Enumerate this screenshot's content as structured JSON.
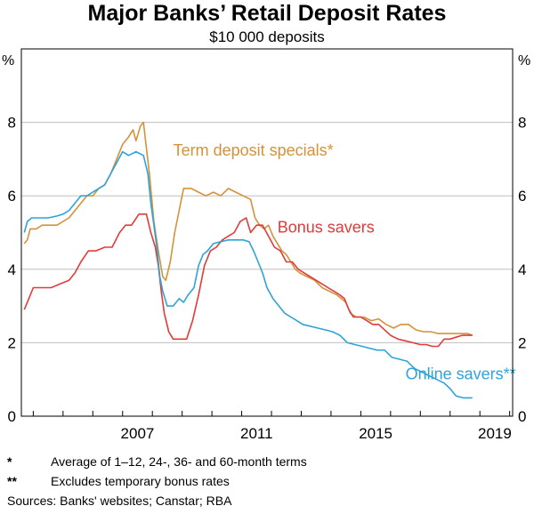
{
  "chart_data": {
    "type": "line",
    "title": "Major Banks’ Retail Deposit Rates",
    "subtitle": "$10 000 deposits",
    "ylabel_left": "%",
    "ylabel_right": "%",
    "xlim": [
      2003.6,
      2020.1
    ],
    "ylim": [
      0,
      10
    ],
    "y_ticks": [
      0,
      2,
      4,
      6,
      8
    ],
    "x_ticks": [
      2007,
      2011,
      2015,
      2019
    ],
    "x_minor_ticks": [
      2004,
      2005,
      2006,
      2007,
      2008,
      2009,
      2010,
      2011,
      2012,
      2013,
      2014,
      2015,
      2016,
      2017,
      2018,
      2019,
      2020
    ],
    "grid": "horizontal",
    "series": [
      {
        "name": "Term deposit specials*",
        "color": "#d4923a",
        "label_x": 2008.7,
        "label_y": 7.1,
        "points": [
          [
            2003.7,
            4.7
          ],
          [
            2003.8,
            4.8
          ],
          [
            2003.9,
            5.1
          ],
          [
            2004.1,
            5.1
          ],
          [
            2004.3,
            5.2
          ],
          [
            2004.6,
            5.2
          ],
          [
            2004.8,
            5.2
          ],
          [
            2005.0,
            5.3
          ],
          [
            2005.2,
            5.4
          ],
          [
            2005.4,
            5.6
          ],
          [
            2005.6,
            5.8
          ],
          [
            2005.8,
            6.0
          ],
          [
            2006.0,
            6.0
          ],
          [
            2006.2,
            6.2
          ],
          [
            2006.4,
            6.3
          ],
          [
            2006.6,
            6.6
          ],
          [
            2006.8,
            7.0
          ],
          [
            2007.0,
            7.4
          ],
          [
            2007.2,
            7.6
          ],
          [
            2007.35,
            7.8
          ],
          [
            2007.45,
            7.5
          ],
          [
            2007.6,
            7.9
          ],
          [
            2007.7,
            8.0
          ],
          [
            2007.8,
            7.3
          ],
          [
            2007.9,
            6.6
          ],
          [
            2008.05,
            5.3
          ],
          [
            2008.2,
            4.5
          ],
          [
            2008.35,
            3.8
          ],
          [
            2008.45,
            3.7
          ],
          [
            2008.6,
            4.2
          ],
          [
            2008.75,
            5.0
          ],
          [
            2008.9,
            5.6
          ],
          [
            2009.05,
            6.2
          ],
          [
            2009.3,
            6.2
          ],
          [
            2009.55,
            6.1
          ],
          [
            2009.8,
            6.0
          ],
          [
            2010.05,
            6.1
          ],
          [
            2010.3,
            6.0
          ],
          [
            2010.55,
            6.2
          ],
          [
            2010.8,
            6.1
          ],
          [
            2011.05,
            6.0
          ],
          [
            2011.3,
            5.9
          ],
          [
            2011.45,
            5.4
          ],
          [
            2011.6,
            5.2
          ],
          [
            2011.75,
            5.1
          ],
          [
            2011.9,
            5.2
          ],
          [
            2012.05,
            4.9
          ],
          [
            2012.2,
            4.7
          ],
          [
            2012.35,
            4.5
          ],
          [
            2012.5,
            4.4
          ],
          [
            2012.65,
            4.2
          ],
          [
            2012.8,
            4.0
          ],
          [
            2012.95,
            3.9
          ],
          [
            2013.2,
            3.8
          ],
          [
            2013.45,
            3.7
          ],
          [
            2013.7,
            3.5
          ],
          [
            2013.95,
            3.4
          ],
          [
            2014.2,
            3.3
          ],
          [
            2014.35,
            3.2
          ],
          [
            2014.5,
            3.1
          ],
          [
            2014.65,
            2.8
          ],
          [
            2014.85,
            2.7
          ],
          [
            2015.1,
            2.7
          ],
          [
            2015.35,
            2.6
          ],
          [
            2015.6,
            2.65
          ],
          [
            2015.85,
            2.5
          ],
          [
            2016.1,
            2.4
          ],
          [
            2016.35,
            2.5
          ],
          [
            2016.6,
            2.5
          ],
          [
            2016.85,
            2.35
          ],
          [
            2017.1,
            2.3
          ],
          [
            2017.35,
            2.3
          ],
          [
            2017.6,
            2.25
          ],
          [
            2017.85,
            2.25
          ],
          [
            2018.1,
            2.25
          ],
          [
            2018.35,
            2.25
          ],
          [
            2018.6,
            2.25
          ],
          [
            2018.75,
            2.2
          ]
        ]
      },
      {
        "name": "Bonus savers",
        "color": "#e03b3b",
        "label_x": 2012.2,
        "label_y": 5.0,
        "points": [
          [
            2003.7,
            2.9
          ],
          [
            2003.85,
            3.2
          ],
          [
            2004.0,
            3.5
          ],
          [
            2004.3,
            3.5
          ],
          [
            2004.6,
            3.5
          ],
          [
            2004.9,
            3.6
          ],
          [
            2005.2,
            3.7
          ],
          [
            2005.4,
            3.9
          ],
          [
            2005.6,
            4.2
          ],
          [
            2005.85,
            4.5
          ],
          [
            2006.1,
            4.5
          ],
          [
            2006.4,
            4.6
          ],
          [
            2006.65,
            4.6
          ],
          [
            2006.9,
            5.0
          ],
          [
            2007.1,
            5.2
          ],
          [
            2007.3,
            5.2
          ],
          [
            2007.55,
            5.5
          ],
          [
            2007.8,
            5.5
          ],
          [
            2007.95,
            5.0
          ],
          [
            2008.1,
            4.6
          ],
          [
            2008.2,
            4.1
          ],
          [
            2008.3,
            3.4
          ],
          [
            2008.4,
            2.8
          ],
          [
            2008.55,
            2.3
          ],
          [
            2008.7,
            2.1
          ],
          [
            2008.9,
            2.1
          ],
          [
            2009.15,
            2.1
          ],
          [
            2009.35,
            2.6
          ],
          [
            2009.55,
            3.3
          ],
          [
            2009.75,
            4.1
          ],
          [
            2009.95,
            4.5
          ],
          [
            2010.15,
            4.6
          ],
          [
            2010.35,
            4.8
          ],
          [
            2010.55,
            4.9
          ],
          [
            2010.75,
            5.0
          ],
          [
            2010.95,
            5.3
          ],
          [
            2011.15,
            5.4
          ],
          [
            2011.3,
            5.0
          ],
          [
            2011.5,
            5.2
          ],
          [
            2011.7,
            5.2
          ],
          [
            2011.9,
            4.9
          ],
          [
            2012.1,
            4.6
          ],
          [
            2012.3,
            4.5
          ],
          [
            2012.5,
            4.2
          ],
          [
            2012.7,
            4.2
          ],
          [
            2012.9,
            4.0
          ],
          [
            2013.1,
            3.9
          ],
          [
            2013.3,
            3.8
          ],
          [
            2013.5,
            3.7
          ],
          [
            2013.7,
            3.6
          ],
          [
            2013.9,
            3.5
          ],
          [
            2014.1,
            3.4
          ],
          [
            2014.3,
            3.3
          ],
          [
            2014.45,
            3.2
          ],
          [
            2014.6,
            2.9
          ],
          [
            2014.75,
            2.7
          ],
          [
            2015.0,
            2.7
          ],
          [
            2015.2,
            2.6
          ],
          [
            2015.4,
            2.5
          ],
          [
            2015.6,
            2.5
          ],
          [
            2015.8,
            2.35
          ],
          [
            2016.0,
            2.2
          ],
          [
            2016.25,
            2.1
          ],
          [
            2016.5,
            2.05
          ],
          [
            2016.75,
            2.0
          ],
          [
            2017.0,
            1.95
          ],
          [
            2017.2,
            1.95
          ],
          [
            2017.4,
            1.9
          ],
          [
            2017.6,
            1.9
          ],
          [
            2017.8,
            2.1
          ],
          [
            2018.0,
            2.1
          ],
          [
            2018.2,
            2.15
          ],
          [
            2018.4,
            2.2
          ],
          [
            2018.6,
            2.2
          ],
          [
            2018.75,
            2.2
          ]
        ]
      },
      {
        "name": "Online savers**",
        "color": "#2fa3d8",
        "label_x": 2016.5,
        "label_y": 1.0,
        "points": [
          [
            2003.7,
            5.0
          ],
          [
            2003.8,
            5.3
          ],
          [
            2003.95,
            5.4
          ],
          [
            2004.2,
            5.4
          ],
          [
            2004.5,
            5.4
          ],
          [
            2004.8,
            5.45
          ],
          [
            2005.0,
            5.5
          ],
          [
            2005.2,
            5.6
          ],
          [
            2005.4,
            5.8
          ],
          [
            2005.6,
            6.0
          ],
          [
            2005.8,
            6.0
          ],
          [
            2006.0,
            6.1
          ],
          [
            2006.2,
            6.2
          ],
          [
            2006.4,
            6.3
          ],
          [
            2006.6,
            6.6
          ],
          [
            2006.8,
            6.9
          ],
          [
            2007.0,
            7.2
          ],
          [
            2007.2,
            7.1
          ],
          [
            2007.45,
            7.2
          ],
          [
            2007.7,
            7.1
          ],
          [
            2007.85,
            6.6
          ],
          [
            2007.95,
            5.8
          ],
          [
            2008.05,
            5.2
          ],
          [
            2008.15,
            4.6
          ],
          [
            2008.25,
            3.8
          ],
          [
            2008.35,
            3.4
          ],
          [
            2008.5,
            3.0
          ],
          [
            2008.7,
            3.0
          ],
          [
            2008.9,
            3.2
          ],
          [
            2009.05,
            3.1
          ],
          [
            2009.2,
            3.3
          ],
          [
            2009.4,
            3.5
          ],
          [
            2009.55,
            4.1
          ],
          [
            2009.7,
            4.4
          ],
          [
            2009.85,
            4.5
          ],
          [
            2010.05,
            4.7
          ],
          [
            2010.3,
            4.75
          ],
          [
            2010.55,
            4.8
          ],
          [
            2010.8,
            4.8
          ],
          [
            2011.05,
            4.8
          ],
          [
            2011.25,
            4.75
          ],
          [
            2011.4,
            4.5
          ],
          [
            2011.55,
            4.2
          ],
          [
            2011.7,
            3.9
          ],
          [
            2011.85,
            3.5
          ],
          [
            2012.05,
            3.2
          ],
          [
            2012.25,
            3.0
          ],
          [
            2012.45,
            2.8
          ],
          [
            2012.65,
            2.7
          ],
          [
            2012.85,
            2.6
          ],
          [
            2013.05,
            2.5
          ],
          [
            2013.3,
            2.45
          ],
          [
            2013.55,
            2.4
          ],
          [
            2013.8,
            2.35
          ],
          [
            2014.05,
            2.3
          ],
          [
            2014.3,
            2.2
          ],
          [
            2014.55,
            2.0
          ],
          [
            2014.8,
            1.95
          ],
          [
            2015.05,
            1.9
          ],
          [
            2015.3,
            1.85
          ],
          [
            2015.55,
            1.8
          ],
          [
            2015.8,
            1.8
          ],
          [
            2016.05,
            1.6
          ],
          [
            2016.3,
            1.55
          ],
          [
            2016.55,
            1.5
          ],
          [
            2016.8,
            1.3
          ],
          [
            2017.05,
            1.2
          ],
          [
            2017.3,
            1.1
          ],
          [
            2017.55,
            1.0
          ],
          [
            2017.8,
            0.9
          ],
          [
            2018.0,
            0.75
          ],
          [
            2018.2,
            0.55
          ],
          [
            2018.45,
            0.5
          ],
          [
            2018.75,
            0.5
          ]
        ]
      }
    ]
  },
  "footnotes": [
    {
      "mark": "*",
      "text": "Average of 1–12, 24-, 36- and 60-month terms"
    },
    {
      "mark": "**",
      "text": "Excludes temporary bonus rates"
    }
  ],
  "sources": "Sources: Banks' websites; Canstar; RBA"
}
